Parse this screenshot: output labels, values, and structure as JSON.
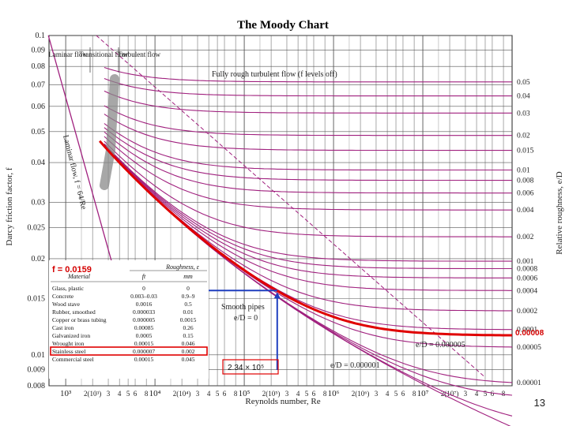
{
  "chart_data": {
    "type": "line",
    "title": "The Moody Chart",
    "xlabel": "Reynolds number, Re",
    "ylabel": "Darcy friction factor, f",
    "ylabel_right": "Relative roughness, e/D",
    "xscale": "log",
    "yscale": "log",
    "xlim": [
      650,
      100000000
    ],
    "ylim": [
      0.008,
      0.1
    ],
    "x_tick_labels": [
      "10³",
      "2(10³)",
      "3",
      "4",
      "5",
      "6",
      "8",
      "10⁴",
      "2(10⁴)",
      "3",
      "4",
      "5",
      "6",
      "8",
      "10⁵",
      "2(10⁵)",
      "3",
      "4",
      "5",
      "6",
      "8",
      "10⁶",
      "2(10⁶)",
      "3",
      "4",
      "5",
      "6",
      "8",
      "10⁷",
      "2(10⁷)",
      "3",
      "4",
      "5",
      "6",
      "8"
    ],
    "y_tick_labels": [
      "0.1",
      "0.09",
      "0.08",
      "0.07",
      "0.06",
      "0.05",
      "0.04",
      "0.03",
      "0.025",
      "0.02",
      "0.015",
      "0.01",
      "0.009",
      "0.008"
    ],
    "roughness_labels": [
      "0.05",
      "0.04",
      "0.03",
      "0.02",
      "0.015",
      "0.01",
      "0.008",
      "0.006",
      "0.004",
      "0.002",
      "0.001",
      "0.0008",
      "0.0006",
      "0.0004",
      "0.0002",
      "0.0001",
      "0.00005",
      "0.00001"
    ],
    "roughness_values": [
      0.05,
      0.04,
      0.03,
      0.02,
      0.015,
      0.01,
      0.008,
      0.006,
      0.004,
      0.002,
      0.001,
      0.0008,
      0.0006,
      0.0004,
      0.0002,
      0.0001,
      5e-05,
      1e-05
    ],
    "extra_curves": [
      {
        "name": "Smooth pipes",
        "relative_roughness": 0
      },
      {
        "name": "e/D = 0.000005",
        "relative_roughness": 5e-06
      },
      {
        "name": "e/D = 0.000001",
        "relative_roughness": 1e-06
      }
    ],
    "laminar": {
      "label": "Laminar flow, f = 64/Re",
      "formula": "f = 64/Re"
    },
    "annotations": {
      "regimes": [
        "Laminar flow",
        "Transitional flow",
        "Turbulent flow"
      ],
      "fully_rough": "Fully rough turbulent flow (f levels off)",
      "smooth_pipes": "Smooth pipes",
      "smooth_ed": "e/D = 0",
      "ed_5e6": "e/D = 0.000005",
      "ed_1e6": "e/D = 0.000001"
    },
    "highlight": {
      "relative_roughness": 8e-05,
      "roughness_label": "0.00008",
      "reynolds": 234000,
      "re_label": "2.34 × 10⁵",
      "f": 0.0159,
      "f_label": "f = 0.0159"
    },
    "roughness_table": {
      "header": "Roughness, ε",
      "columns": [
        "Material",
        "ft",
        "mm"
      ],
      "rows": [
        [
          "Glass, plastic",
          "0",
          "0"
        ],
        [
          "Concrete",
          "0.003–0.03",
          "0.9–9"
        ],
        [
          "Wood stave",
          "0.0016",
          "0.5"
        ],
        [
          "Rubber, smoothed",
          "0.000033",
          "0.01"
        ],
        [
          "Copper or brass tubing",
          "0.000005",
          "0.0015"
        ],
        [
          "Cast iron",
          "0.00085",
          "0.26"
        ],
        [
          "Galvanized iron",
          "0.0005",
          "0.15"
        ],
        [
          "Wrought iron",
          "0.00015",
          "0.046"
        ],
        [
          "Stainless steel",
          "0.000007",
          "0.002"
        ],
        [
          "Commercial steel",
          "0.00015",
          "0.045"
        ]
      ],
      "highlighted_row": 8
    },
    "colors": {
      "curve": "#a0207e",
      "highlight": "#e00000",
      "arrow": "#1f3fbf",
      "grid": "#555555"
    }
  },
  "page_number": "13"
}
